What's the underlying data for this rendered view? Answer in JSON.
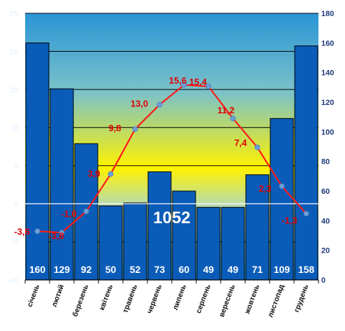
{
  "chart_data": {
    "type": "bar+line",
    "categories": [
      "січень",
      "лютий",
      "березень",
      "квітень",
      "травень",
      "червень",
      "липень",
      "серпень",
      "вересень",
      "жовтень",
      "листопад",
      "грудень"
    ],
    "series": [
      {
        "values": [
          160,
          129,
          92,
          50,
          52,
          73,
          60,
          49,
          49,
          71,
          109,
          158
        ],
        "axis": "right",
        "type": "bar",
        "color": "#0a5cb8"
      },
      {
        "values": [
          -3.6,
          -3.8,
          -1.0,
          3.9,
          9.8,
          13.0,
          15.6,
          15.4,
          11.2,
          7.4,
          2.3,
          -1.3
        ],
        "axis": "left",
        "type": "line",
        "color": "#ff1a1a"
      }
    ],
    "temp_labels": [
      "-3,6",
      "-3,8",
      "-1,0",
      "3,9",
      "9,8",
      "13,0",
      "15,6",
      "15,4",
      "11,2",
      "7,4",
      "2,3",
      "-1,3"
    ],
    "precip_labels": [
      "160",
      "129",
      "92",
      "50",
      "52",
      "73",
      "60",
      "49",
      "49",
      "71",
      "109",
      "158"
    ],
    "total_label": "1052",
    "y_left": {
      "lim": [
        -10,
        25
      ],
      "ticks": [
        "25",
        "20",
        "15",
        "10",
        "5",
        "0",
        "-5",
        "-10"
      ]
    },
    "y_right": {
      "lim": [
        0,
        180
      ],
      "ticks": [
        "180",
        "160",
        "140",
        "120",
        "100",
        "80",
        "60",
        "40",
        "20",
        "0"
      ]
    },
    "grid": true,
    "colors": {
      "bar": "#0a5cb8",
      "line": "#ff1a1a",
      "marker": "#6b9fd6",
      "plot_top": "#2f9ad8",
      "plot_mid": "#fff200"
    }
  }
}
